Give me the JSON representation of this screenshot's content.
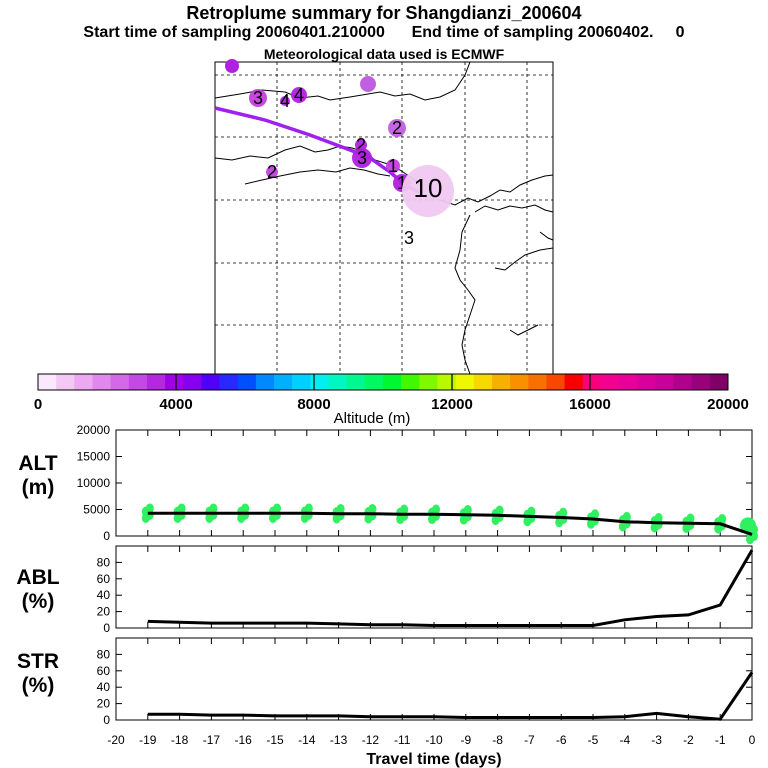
{
  "header": {
    "title": "Retroplume summary for Shangdianzi_200604",
    "line2": "Start time of sampling 20060401.210000      End time of sampling 20060402.     0",
    "line3": "Meteorological data used is ECMWF"
  },
  "map": {
    "points": [
      {
        "label": "1",
        "color": "#c43fe0"
      },
      {
        "label": "1",
        "color": "#b020e0"
      },
      {
        "label": "2",
        "color": "#c060e0"
      },
      {
        "label": "2",
        "color": "#c43fe0"
      },
      {
        "label": "2",
        "color": "#b020e0"
      },
      {
        "label": "3",
        "color": "#c43fe0"
      },
      {
        "label": "3",
        "color": "#b020e0"
      },
      {
        "label": "3",
        "color": "#ffffff"
      },
      {
        "label": "4",
        "color": "#b020e0"
      },
      {
        "label": "4",
        "color": "#b020e0"
      },
      {
        "label": "10",
        "color": "#f0c8f0"
      }
    ]
  },
  "colorbar": {
    "title": "Altitude (m)",
    "ticks": [
      "0",
      "4000",
      "8000",
      "12000",
      "16000",
      "20000"
    ],
    "min": 0,
    "max": 20000,
    "colors": [
      "#fce8fc",
      "#f4c8f4",
      "#eca8f0",
      "#e088ec",
      "#d468e8",
      "#c448e4",
      "#b428e0",
      "#a000e8",
      "#8800f0",
      "#5000f8",
      "#2828ff",
      "#0050ff",
      "#0088ff",
      "#00b0ff",
      "#00d0ff",
      "#00f0f0",
      "#00f8c0",
      "#00f890",
      "#00f860",
      "#00f830",
      "#40f800",
      "#80f800",
      "#b8f800",
      "#f0f800",
      "#f8d800",
      "#f8b000",
      "#f89000",
      "#f87000",
      "#f84800",
      "#f80000",
      "#f8007c",
      "#f40090",
      "#e80098",
      "#d8009c",
      "#c8009c",
      "#b0008c",
      "#98007c",
      "#800068"
    ]
  },
  "chart_data": [
    {
      "type": "line",
      "panel": "ALT",
      "ylabel": "ALT\n(m)",
      "x": [
        -19,
        -18,
        -17,
        -16,
        -15,
        -14,
        -13,
        -12,
        -11,
        -10,
        -9,
        -8,
        -7,
        -6,
        -5,
        -4,
        -3,
        -2,
        -1,
        0
      ],
      "values": [
        4300,
        4300,
        4300,
        4300,
        4300,
        4300,
        4200,
        4200,
        4100,
        4100,
        4000,
        3900,
        3700,
        3500,
        3200,
        2700,
        2500,
        2400,
        2300,
        300
      ],
      "scatter_color": "#30f060",
      "ylim": [
        0,
        20000
      ],
      "yticks": [
        "0",
        "5000",
        "10000",
        "15000",
        "20000"
      ],
      "xlim": [
        -20,
        0
      ]
    },
    {
      "type": "line",
      "panel": "ABL",
      "ylabel": "ABL\n(%)",
      "x": [
        -19,
        -18,
        -17,
        -16,
        -15,
        -14,
        -13,
        -12,
        -11,
        -10,
        -9,
        -8,
        -7,
        -6,
        -5,
        -4,
        -3,
        -2,
        -1,
        0
      ],
      "values": [
        8,
        7,
        6,
        6,
        6,
        6,
        5,
        4,
        4,
        3,
        3,
        3,
        3,
        3,
        3,
        10,
        14,
        16,
        28,
        95
      ],
      "ylim": [
        0,
        100
      ],
      "yticks": [
        "0",
        "20",
        "40",
        "60",
        "80"
      ],
      "xlim": [
        -20,
        0
      ]
    },
    {
      "type": "line",
      "panel": "STR",
      "ylabel": "STR\n(%)",
      "x": [
        -19,
        -18,
        -17,
        -16,
        -15,
        -14,
        -13,
        -12,
        -11,
        -10,
        -9,
        -8,
        -7,
        -6,
        -5,
        -4,
        -3,
        -2,
        -1,
        0
      ],
      "values": [
        7,
        7,
        6,
        6,
        5,
        5,
        5,
        4,
        4,
        4,
        3,
        3,
        3,
        3,
        3,
        4,
        8,
        4,
        1,
        58
      ],
      "ylim": [
        0,
        100
      ],
      "yticks": [
        "0",
        "20",
        "40",
        "60",
        "80"
      ],
      "xlim": [
        -20,
        0
      ],
      "xlabel": "Travel time (days)",
      "xticks": [
        "-20",
        "-19",
        "-18",
        "-17",
        "-16",
        "-15",
        "-14",
        "-13",
        "-12",
        "-11",
        "-10",
        "-9",
        "-8",
        "-7",
        "-6",
        "-5",
        "-4",
        "-3",
        "-2",
        "-1",
        "0"
      ]
    }
  ]
}
